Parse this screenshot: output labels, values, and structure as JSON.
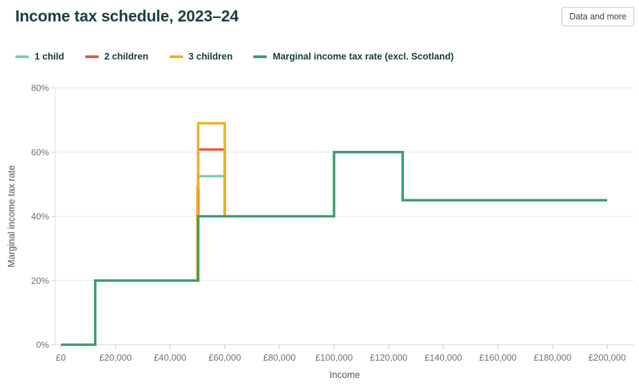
{
  "header": {
    "title": "Income tax schedule, 2023–24",
    "button_label": "Data and more"
  },
  "chart_data": {
    "type": "line",
    "subtype": "step",
    "title": "Income tax schedule, 2023–24",
    "xlabel": "Income",
    "ylabel": "Marginal income tax rate",
    "xlim": [
      0,
      200000
    ],
    "ylim": [
      0,
      80
    ],
    "grid": "horizontal",
    "legend_position": "top",
    "x_ticks": [
      0,
      20000,
      40000,
      60000,
      80000,
      100000,
      120000,
      140000,
      160000,
      180000,
      200000
    ],
    "x_tick_labels": [
      "£0",
      "£20,000",
      "£40,000",
      "£60,000",
      "£80,000",
      "£100,000",
      "£120,000",
      "£140,000",
      "£160,000",
      "£180,000",
      "£200,000"
    ],
    "y_ticks": [
      0,
      20,
      40,
      60,
      80
    ],
    "y_tick_labels": [
      "0%",
      "20%",
      "40%",
      "60%",
      "80%"
    ],
    "series": [
      {
        "name": "1 child",
        "color": "#7bcfa6",
        "points": [
          [
            50000,
            20
          ],
          [
            50000,
            32.5
          ],
          [
            50270,
            32.5
          ],
          [
            50270,
            52.5
          ],
          [
            60000,
            52.5
          ],
          [
            60000,
            40
          ]
        ]
      },
      {
        "name": "2 children",
        "color": "#de5b41",
        "points": [
          [
            50000,
            20
          ],
          [
            50000,
            40.8
          ],
          [
            50270,
            40.8
          ],
          [
            50270,
            60.8
          ],
          [
            60000,
            60.8
          ],
          [
            60000,
            40
          ]
        ]
      },
      {
        "name": "3 children",
        "color": "#efb11e",
        "points": [
          [
            50000,
            20
          ],
          [
            50000,
            49
          ],
          [
            50270,
            49
          ],
          [
            50270,
            69
          ],
          [
            60000,
            69
          ],
          [
            60000,
            40
          ]
        ]
      },
      {
        "name": "Marginal income tax rate (excl. Scotland)",
        "color": "#3b9c6b",
        "points": [
          [
            0,
            0
          ],
          [
            12570,
            0
          ],
          [
            12570,
            20
          ],
          [
            50270,
            20
          ],
          [
            50270,
            40
          ],
          [
            100000,
            40
          ],
          [
            100000,
            60
          ],
          [
            125140,
            60
          ],
          [
            125140,
            45
          ],
          [
            200000,
            45
          ]
        ]
      }
    ]
  }
}
